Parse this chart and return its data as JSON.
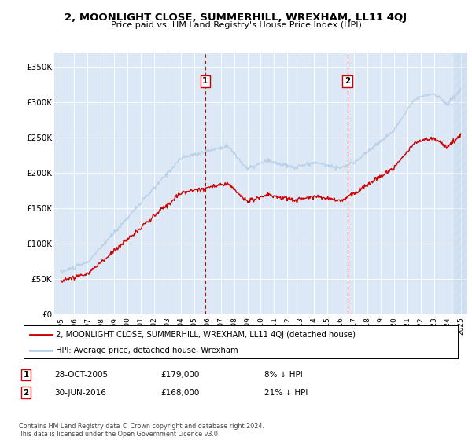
{
  "title": "2, MOONLIGHT CLOSE, SUMMERHILL, WREXHAM, LL11 4QJ",
  "subtitle": "Price paid vs. HM Land Registry's House Price Index (HPI)",
  "ylabel_ticks": [
    "£0",
    "£50K",
    "£100K",
    "£150K",
    "£200K",
    "£250K",
    "£300K",
    "£350K"
  ],
  "ytick_values": [
    0,
    50000,
    100000,
    150000,
    200000,
    250000,
    300000,
    350000
  ],
  "ylim": [
    0,
    370000
  ],
  "xlim_start": 1994.5,
  "xlim_end": 2025.5,
  "sale1": {
    "date_num": 2005.83,
    "price": 179000,
    "label": "1"
  },
  "sale2": {
    "date_num": 2016.5,
    "price": 168000,
    "label": "2"
  },
  "hpi_color": "#b8d0e8",
  "price_color": "#cc0000",
  "vline_color": "#cc0000",
  "legend_entries": [
    "2, MOONLIGHT CLOSE, SUMMERHILL, WREXHAM, LL11 4QJ (detached house)",
    "HPI: Average price, detached house, Wrexham"
  ],
  "table_rows": [
    {
      "num": "1",
      "date": "28-OCT-2005",
      "price": "£179,000",
      "hpi": "8% ↓ HPI"
    },
    {
      "num": "2",
      "date": "30-JUN-2016",
      "price": "£168,000",
      "hpi": "21% ↓ HPI"
    }
  ],
  "footnote": "Contains HM Land Registry data © Crown copyright and database right 2024.\nThis data is licensed under the Open Government Licence v3.0.",
  "plot_bg_color": "#dce8f5",
  "fig_bg_color": "#ffffff",
  "hatch_region_start": 2024.5
}
